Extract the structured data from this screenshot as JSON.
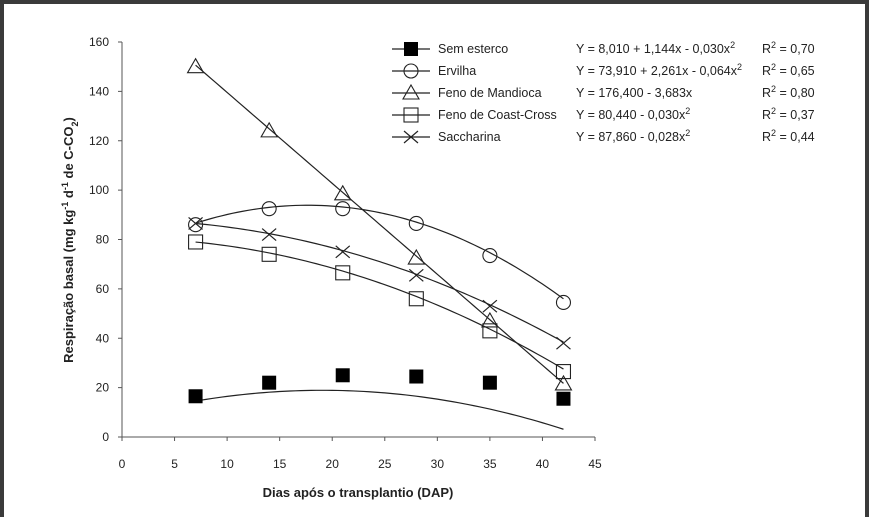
{
  "chart_data": {
    "type": "scatter",
    "xlabel": "Dias após o transplantio (DAP)",
    "ylabel": "Respiração basal (mg kg-1 d-1 de C-CO2)",
    "xlim": [
      0,
      45
    ],
    "ylim": [
      0,
      160
    ],
    "x_ticks": [
      "0",
      "5",
      "10",
      "15",
      "20",
      "25",
      "30",
      "35",
      "40",
      "45"
    ],
    "y_ticks": [
      "0",
      "20",
      "40",
      "60",
      "80",
      "100",
      "120",
      "140",
      "160"
    ],
    "grid": false,
    "legend_position": "top-right",
    "x": [
      7,
      14,
      21,
      28,
      35,
      42
    ],
    "series": [
      {
        "name": "Sem esterco",
        "marker": "filled-square",
        "values": [
          16.5,
          22,
          25,
          24.5,
          22,
          15.5
        ],
        "equation": "Y = 8,010 + 1,144x - 0,030x2",
        "r2": "R2 = 0,70",
        "fit": [
          8.01,
          1.144,
          -0.03
        ]
      },
      {
        "name": "Ervilha",
        "marker": "open-circle",
        "values": [
          86,
          92.5,
          92.5,
          86.5,
          73.5,
          54.5
        ],
        "equation": "Y = 73,910 + 2,261x - 0,064x2",
        "r2": "R2 = 0,65",
        "fit": [
          73.91,
          2.261,
          -0.064
        ]
      },
      {
        "name": "Feno de Mandioca",
        "marker": "open-triangle",
        "values": [
          150,
          124,
          98.5,
          72.5,
          47,
          21.5
        ],
        "equation": "Y = 176,400 - 3,683x",
        "r2": "R2 = 0,80",
        "fit": [
          176.4,
          -3.683,
          0
        ]
      },
      {
        "name": "Feno de Coast-Cross",
        "marker": "open-square",
        "values": [
          79,
          74,
          66.5,
          56,
          43,
          26.5
        ],
        "equation": "Y = 80,440 - 0,030x2",
        "r2": "R2 = 0,37",
        "fit": [
          80.44,
          0,
          -0.03
        ]
      },
      {
        "name": "Saccharina",
        "marker": "x-cross",
        "values": [
          86.5,
          82,
          75,
          65.5,
          53,
          38
        ],
        "equation": "Y = 87,860 - 0,028x2",
        "r2": "R2 = 0,44",
        "fit": [
          87.86,
          0,
          -0.028
        ]
      }
    ]
  }
}
